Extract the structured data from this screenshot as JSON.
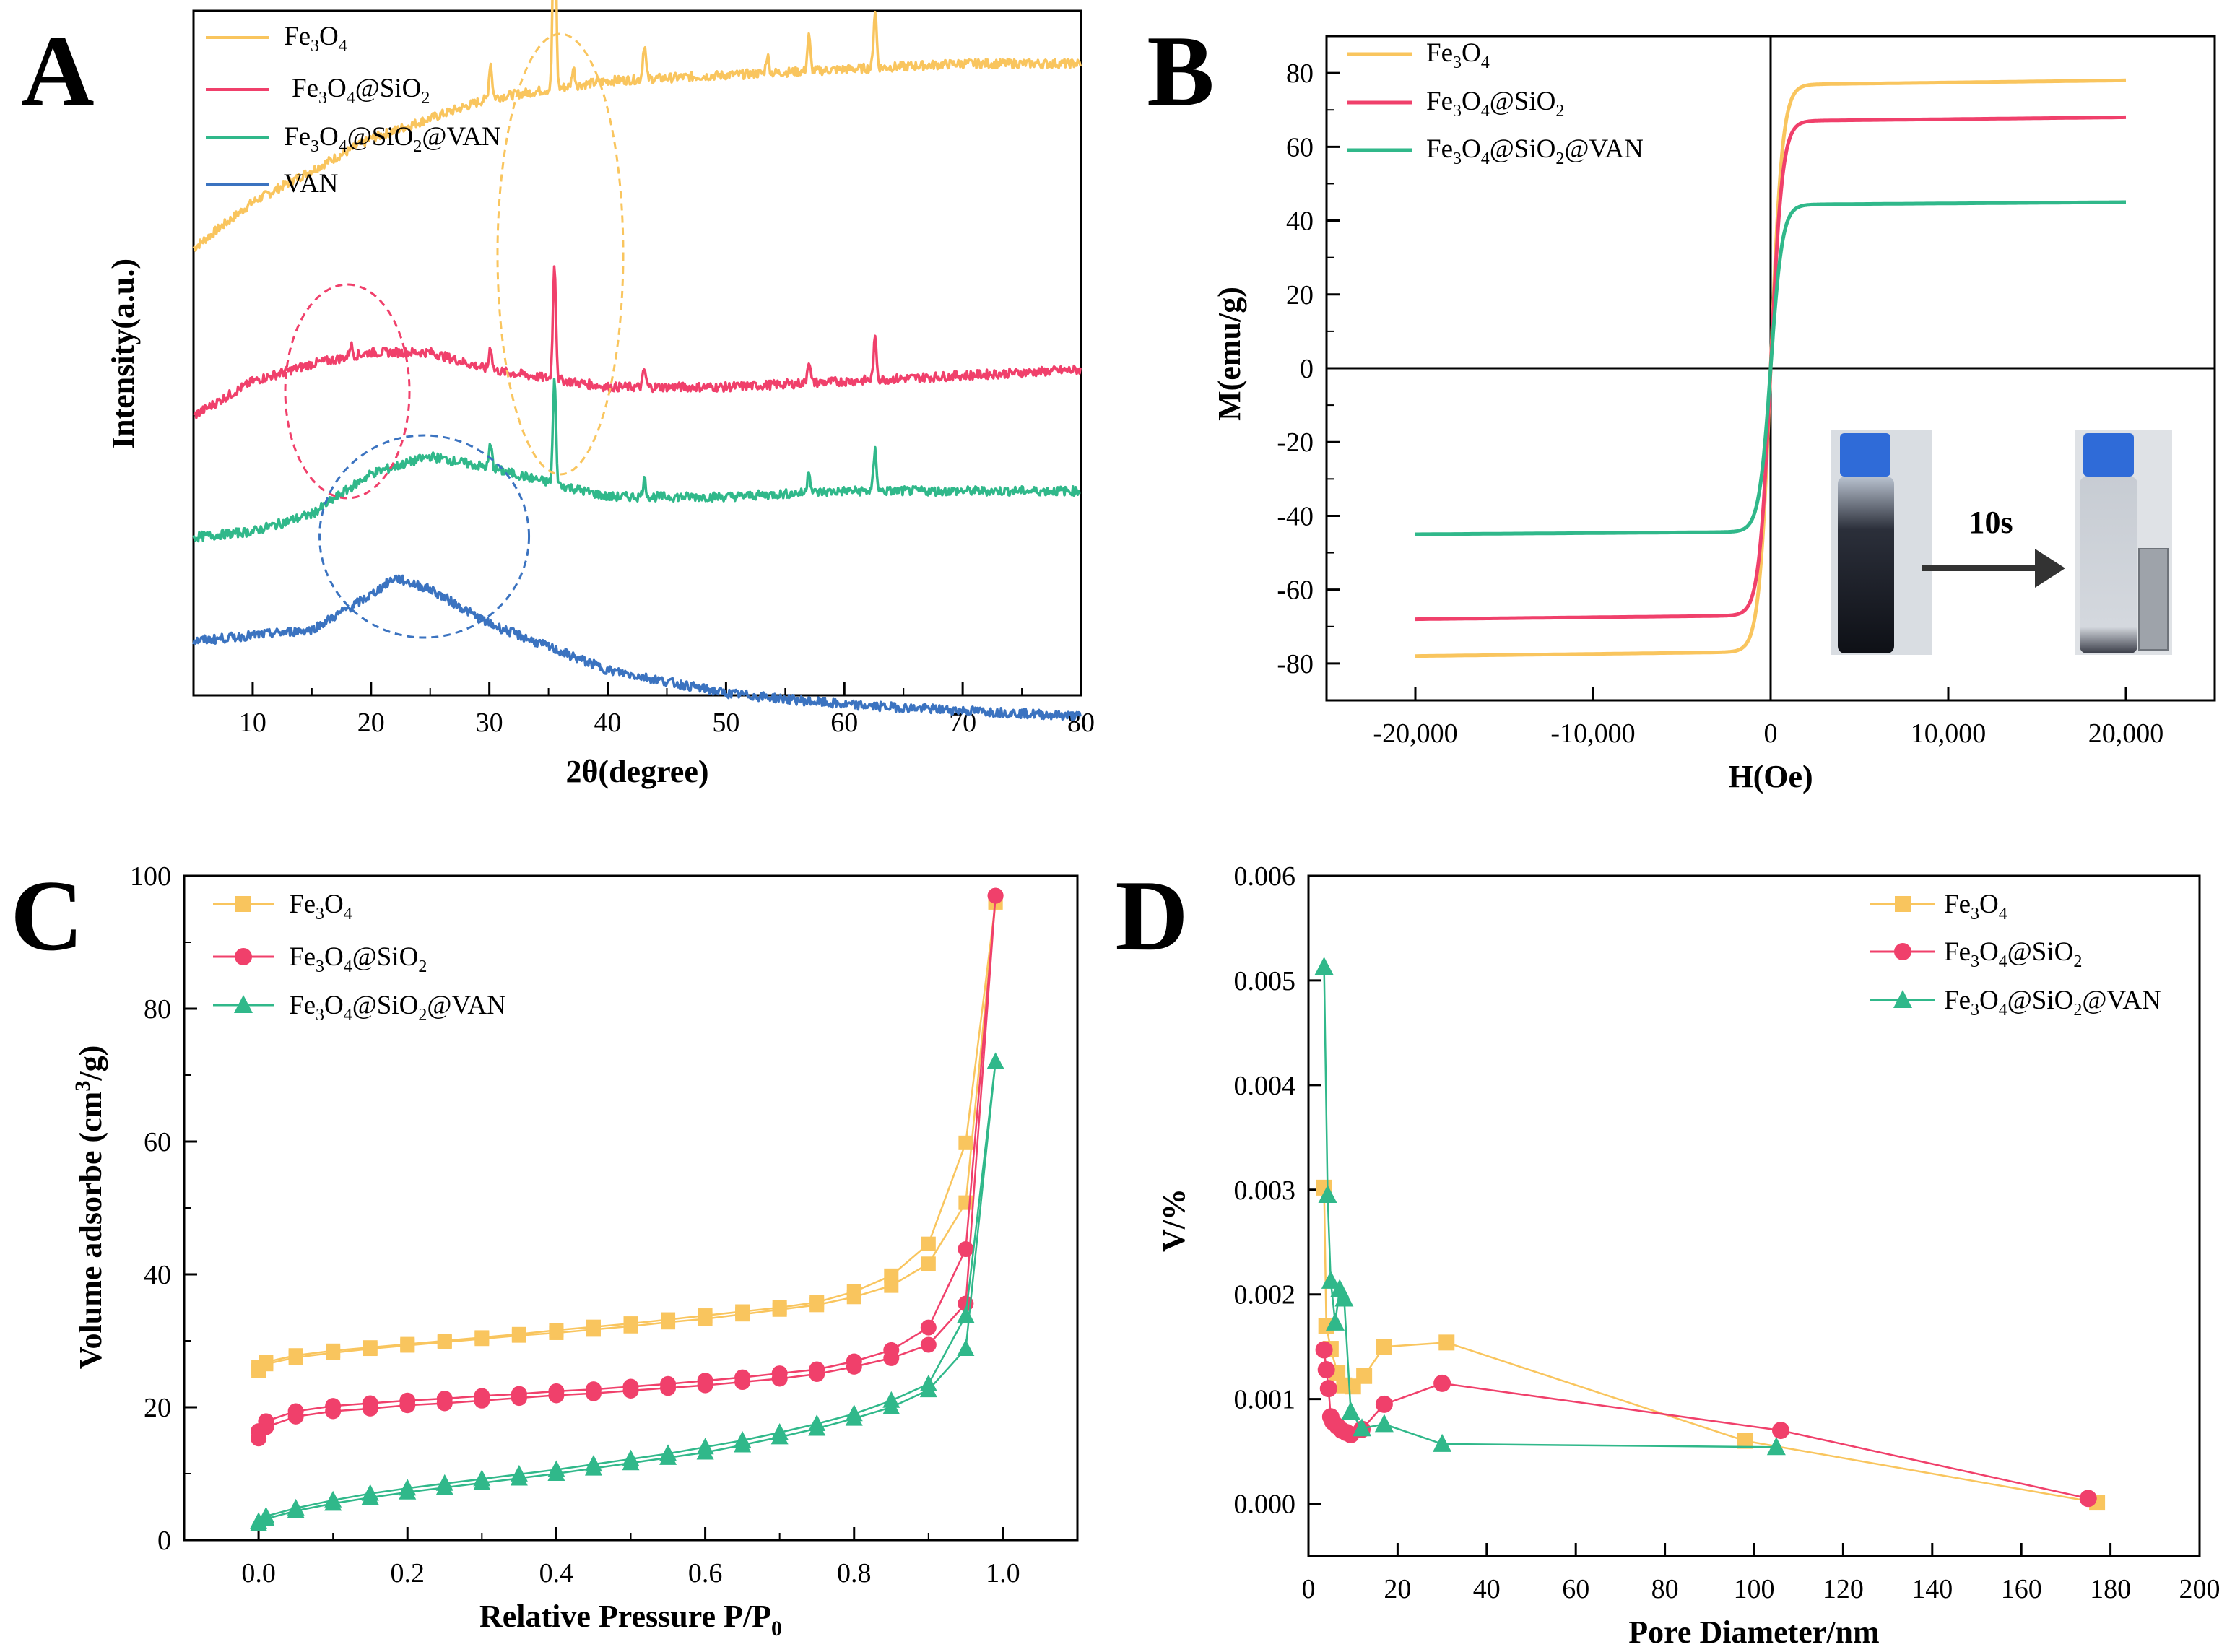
{
  "chart_data": [
    {
      "panel": "A",
      "type": "line",
      "title": "",
      "xlabel": "2θ(degree)",
      "ylabel": "Intensity(a.u.)",
      "xlim": [
        5,
        80
      ],
      "xticks": [
        "10",
        "20",
        "30",
        "40",
        "50",
        "60",
        "70",
        "80"
      ],
      "colors": {
        "Fe3O4": "#f9c55e",
        "Fe3O4@SiO2": "#f0406b",
        "Fe3O4@SiO2@VAN": "#30b88a",
        "VAN": "#3b73c0"
      },
      "legend": [
        "Fe3O4",
        "Fe3O4@SiO2",
        "Fe3O4@SiO2@VAN",
        "VAN"
      ],
      "series": [
        {
          "name": "Fe3O4",
          "baseline": [
            [
              5,
              12
            ],
            [
              10,
              20
            ],
            [
              20,
              31
            ],
            [
              30,
              38
            ],
            [
              40,
              41
            ],
            [
              50,
              42
            ],
            [
              60,
              43
            ],
            [
              70,
              44
            ],
            [
              80,
              44
            ]
          ],
          "peaks": [
            [
              30.1,
              6
            ],
            [
              35.5,
              38
            ],
            [
              37.1,
              3
            ],
            [
              43.1,
              6
            ],
            [
              53.5,
              3
            ],
            [
              57.0,
              6
            ],
            [
              62.6,
              10
            ]
          ]
        },
        {
          "name": "Fe3O4@SiO2",
          "baseline": [
            [
              5,
              -17
            ],
            [
              10,
              -11
            ],
            [
              15,
              -8
            ],
            [
              20,
              -6
            ],
            [
              25,
              -6
            ],
            [
              30,
              -9
            ],
            [
              40,
              -12
            ],
            [
              50,
              -12
            ],
            [
              60,
              -11
            ],
            [
              70,
              -10
            ],
            [
              80,
              -9
            ]
          ],
          "peaks": [
            [
              18.3,
              2
            ],
            [
              30.1,
              4
            ],
            [
              35.5,
              20
            ],
            [
              43.1,
              3
            ],
            [
              57.0,
              4
            ],
            [
              62.6,
              7
            ]
          ]
        },
        {
          "name": "Fe3O4@SiO2@VAN",
          "baseline": [
            [
              5,
              -38
            ],
            [
              10,
              -37
            ],
            [
              15,
              -34
            ],
            [
              20,
              -27
            ],
            [
              25,
              -24
            ],
            [
              30,
              -26
            ],
            [
              40,
              -31
            ],
            [
              50,
              -31
            ],
            [
              60,
              -30
            ],
            [
              70,
              -30
            ],
            [
              80,
              -30
            ]
          ],
          "peaks": [
            [
              30.1,
              4
            ],
            [
              35.5,
              18
            ],
            [
              43.1,
              3
            ],
            [
              57.0,
              4
            ],
            [
              62.6,
              7
            ]
          ]
        },
        {
          "name": "VAN",
          "baseline": [
            [
              5,
              -56
            ],
            [
              10,
              -55
            ],
            [
              15,
              -54
            ],
            [
              20,
              -48
            ],
            [
              22,
              -45
            ],
            [
              25,
              -47
            ],
            [
              30,
              -53
            ],
            [
              40,
              -61
            ],
            [
              50,
              -65
            ],
            [
              60,
              -67
            ],
            [
              70,
              -68
            ],
            [
              80,
              -69
            ]
          ],
          "peaks": []
        }
      ],
      "annotations": [
        "dashed ellipse 2θ≈18 (Fe3O4@SiO2)",
        "dashed ellipse 2θ≈24 (VAN)",
        "dashed ellipse 2θ≈36 (Fe3O4)"
      ]
    },
    {
      "panel": "B",
      "type": "line",
      "title": "",
      "xlabel": "H(Oe)",
      "ylabel": "M(emu/g)",
      "xlim": [
        -25000,
        25000
      ],
      "ylim": [
        -90,
        90
      ],
      "xticks": [
        "-20,000",
        "-10,000",
        "0",
        "10,000",
        "20,000"
      ],
      "yticks": [
        "-80",
        "-60",
        "-40",
        "-20",
        "0",
        "20",
        "40",
        "60",
        "80"
      ],
      "legend": [
        "Fe3O4",
        "Fe3O4@SiO2",
        "Fe3O4@SiO2@VAN"
      ],
      "series": [
        {
          "name": "Fe3O4",
          "Ms": 78,
          "H_range": [
            -20000,
            20000
          ]
        },
        {
          "name": "Fe3O4@SiO2",
          "Ms": 68,
          "H_range": [
            -20000,
            20000
          ]
        },
        {
          "name": "Fe3O4@SiO2@VAN",
          "Ms": 45,
          "H_range": [
            -20000,
            20000
          ]
        }
      ],
      "inset_label": "10s"
    },
    {
      "panel": "C",
      "type": "line",
      "title": "",
      "xlabel": "Relative Pressure P/P",
      "xlabel_sub": "0",
      "ylabel": "Volume adsorbe (cm",
      "ylabel_sup": "3",
      "ylabel_tail": "/g)",
      "xlim": [
        -0.1,
        1.1
      ],
      "ylim": [
        0,
        100
      ],
      "xticks": [
        "0.0",
        "0.2",
        "0.4",
        "0.6",
        "0.8",
        "1.0"
      ],
      "yticks": [
        "0",
        "20",
        "40",
        "60",
        "80",
        "100"
      ],
      "legend": [
        "Fe3O4",
        "Fe3O4@SiO2",
        "Fe3O4@SiO2@VAN"
      ],
      "series": [
        {
          "name": "Fe3O4",
          "marker": "square",
          "adsorption": [
            [
              0.0,
              25.5
            ],
            [
              0.01,
              26.5
            ],
            [
              0.05,
              27.5
            ],
            [
              0.1,
              28.2
            ],
            [
              0.15,
              28.8
            ],
            [
              0.2,
              29.3
            ],
            [
              0.25,
              29.8
            ],
            [
              0.3,
              30.3
            ],
            [
              0.35,
              30.8
            ],
            [
              0.4,
              31.2
            ],
            [
              0.45,
              31.7
            ],
            [
              0.5,
              32.2
            ],
            [
              0.55,
              32.8
            ],
            [
              0.6,
              33.3
            ],
            [
              0.65,
              34.0
            ],
            [
              0.7,
              34.7
            ],
            [
              0.75,
              35.4
            ],
            [
              0.8,
              36.6
            ],
            [
              0.85,
              38.3
            ],
            [
              0.9,
              41.6
            ],
            [
              0.95,
              50.8
            ],
            [
              0.99,
              96.0
            ]
          ],
          "desorption": [
            [
              0.99,
              96.0
            ],
            [
              0.95,
              59.8
            ],
            [
              0.9,
              44.6
            ],
            [
              0.85,
              39.8
            ],
            [
              0.8,
              37.4
            ],
            [
              0.75,
              35.8
            ],
            [
              0.7,
              35.0
            ],
            [
              0.65,
              34.4
            ],
            [
              0.6,
              33.8
            ],
            [
              0.55,
              33.2
            ],
            [
              0.5,
              32.6
            ],
            [
              0.45,
              32.1
            ],
            [
              0.4,
              31.6
            ],
            [
              0.35,
              31.0
            ],
            [
              0.3,
              30.5
            ],
            [
              0.25,
              30.0
            ],
            [
              0.2,
              29.5
            ],
            [
              0.15,
              29.0
            ],
            [
              0.1,
              28.5
            ],
            [
              0.05,
              27.8
            ],
            [
              0.01,
              26.8
            ],
            [
              0.0,
              26.0
            ]
          ]
        },
        {
          "name": "Fe3O4@SiO2",
          "marker": "circle",
          "adsorption": [
            [
              0.0,
              15.3
            ],
            [
              0.01,
              17.0
            ],
            [
              0.05,
              18.6
            ],
            [
              0.1,
              19.4
            ],
            [
              0.15,
              19.8
            ],
            [
              0.2,
              20.3
            ],
            [
              0.25,
              20.6
            ],
            [
              0.3,
              21.0
            ],
            [
              0.35,
              21.4
            ],
            [
              0.4,
              21.8
            ],
            [
              0.45,
              22.1
            ],
            [
              0.5,
              22.5
            ],
            [
              0.55,
              22.9
            ],
            [
              0.6,
              23.3
            ],
            [
              0.65,
              23.8
            ],
            [
              0.7,
              24.3
            ],
            [
              0.75,
              25.0
            ],
            [
              0.8,
              26.1
            ],
            [
              0.85,
              27.4
            ],
            [
              0.9,
              29.4
            ],
            [
              0.95,
              35.6
            ],
            [
              0.99,
              97.0
            ]
          ],
          "desorption": [
            [
              0.99,
              97.0
            ],
            [
              0.95,
              43.8
            ],
            [
              0.9,
              32.0
            ],
            [
              0.85,
              28.6
            ],
            [
              0.8,
              26.9
            ],
            [
              0.75,
              25.7
            ],
            [
              0.7,
              25.1
            ],
            [
              0.65,
              24.5
            ],
            [
              0.6,
              24.0
            ],
            [
              0.55,
              23.5
            ],
            [
              0.5,
              23.1
            ],
            [
              0.45,
              22.7
            ],
            [
              0.4,
              22.4
            ],
            [
              0.35,
              22.0
            ],
            [
              0.3,
              21.7
            ],
            [
              0.25,
              21.3
            ],
            [
              0.2,
              21.0
            ],
            [
              0.15,
              20.6
            ],
            [
              0.1,
              20.2
            ],
            [
              0.05,
              19.4
            ],
            [
              0.01,
              17.9
            ],
            [
              0.0,
              16.4
            ]
          ]
        },
        {
          "name": "Fe3O4@SiO2@VAN",
          "marker": "triangle",
          "adsorption": [
            [
              0.0,
              2.4
            ],
            [
              0.01,
              3.2
            ],
            [
              0.05,
              4.4
            ],
            [
              0.1,
              5.5
            ],
            [
              0.15,
              6.4
            ],
            [
              0.2,
              7.2
            ],
            [
              0.25,
              7.9
            ],
            [
              0.3,
              8.6
            ],
            [
              0.35,
              9.3
            ],
            [
              0.4,
              10.0
            ],
            [
              0.45,
              10.8
            ],
            [
              0.5,
              11.6
            ],
            [
              0.55,
              12.4
            ],
            [
              0.6,
              13.2
            ],
            [
              0.65,
              14.3
            ],
            [
              0.7,
              15.5
            ],
            [
              0.75,
              16.8
            ],
            [
              0.8,
              18.3
            ],
            [
              0.85,
              20.0
            ],
            [
              0.9,
              22.6
            ],
            [
              0.95,
              28.8
            ],
            [
              0.99,
              72.0
            ]
          ],
          "desorption": [
            [
              0.99,
              72.0
            ],
            [
              0.95,
              33.8
            ],
            [
              0.9,
              23.5
            ],
            [
              0.85,
              21.0
            ],
            [
              0.8,
              19.0
            ],
            [
              0.75,
              17.5
            ],
            [
              0.7,
              16.2
            ],
            [
              0.65,
              15.0
            ],
            [
              0.6,
              14.0
            ],
            [
              0.55,
              13.0
            ],
            [
              0.5,
              12.2
            ],
            [
              0.45,
              11.4
            ],
            [
              0.4,
              10.6
            ],
            [
              0.35,
              9.9
            ],
            [
              0.3,
              9.2
            ],
            [
              0.25,
              8.5
            ],
            [
              0.2,
              7.8
            ],
            [
              0.15,
              7.0
            ],
            [
              0.1,
              6.0
            ],
            [
              0.05,
              4.8
            ],
            [
              0.01,
              3.6
            ],
            [
              0.0,
              2.8
            ]
          ]
        }
      ]
    },
    {
      "panel": "D",
      "type": "line",
      "title": "",
      "xlabel": "Pore Diameter/nm",
      "ylabel": "V/%",
      "xlim": [
        0,
        200
      ],
      "ylim": [
        -0.0005,
        0.006
      ],
      "xticks": [
        "0",
        "20",
        "40",
        "60",
        "80",
        "100",
        "120",
        "140",
        "160",
        "180",
        "200"
      ],
      "yticks": [
        "0.000",
        "0.001",
        "0.002",
        "0.003",
        "0.004",
        "0.005",
        "0.006"
      ],
      "legend": [
        "Fe3O4",
        "Fe3O4@SiO2",
        "Fe3O4@SiO2@VAN"
      ],
      "series": [
        {
          "name": "Fe3O4",
          "marker": "square",
          "points": [
            [
              3.5,
              0.00302
            ],
            [
              4.0,
              0.0017
            ],
            [
              5.0,
              0.00148
            ],
            [
              6.5,
              0.00125
            ],
            [
              8.0,
              0.00113
            ],
            [
              10,
              0.00112
            ],
            [
              12.5,
              0.00122
            ],
            [
              17,
              0.0015
            ],
            [
              31,
              0.00154
            ],
            [
              98,
              0.0006
            ],
            [
              177,
              1e-05
            ]
          ]
        },
        {
          "name": "Fe3O4@SiO2",
          "marker": "circle",
          "points": [
            [
              3.5,
              0.00147
            ],
            [
              4.0,
              0.00128
            ],
            [
              4.5,
              0.0011
            ],
            [
              5.0,
              0.00083
            ],
            [
              5.5,
              0.00078
            ],
            [
              6.5,
              0.00074
            ],
            [
              7.5,
              0.0007
            ],
            [
              8.5,
              0.00068
            ],
            [
              9.5,
              0.00066
            ],
            [
              12,
              0.00071
            ],
            [
              17,
              0.00095
            ],
            [
              30,
              0.00115
            ],
            [
              106,
              0.0007
            ],
            [
              175,
              5e-05
            ]
          ]
        },
        {
          "name": "Fe3O4@SiO2@VAN",
          "marker": "triangle",
          "points": [
            [
              3.5,
              0.00513
            ],
            [
              4.3,
              0.00295
            ],
            [
              5.0,
              0.00213
            ],
            [
              6.0,
              0.00173
            ],
            [
              7.0,
              0.00205
            ],
            [
              8.0,
              0.00196
            ],
            [
              9.5,
              0.00088
            ],
            [
              12,
              0.00072
            ],
            [
              17,
              0.00076
            ],
            [
              30,
              0.00057
            ],
            [
              105,
              0.00054
            ]
          ]
        }
      ]
    }
  ]
}
